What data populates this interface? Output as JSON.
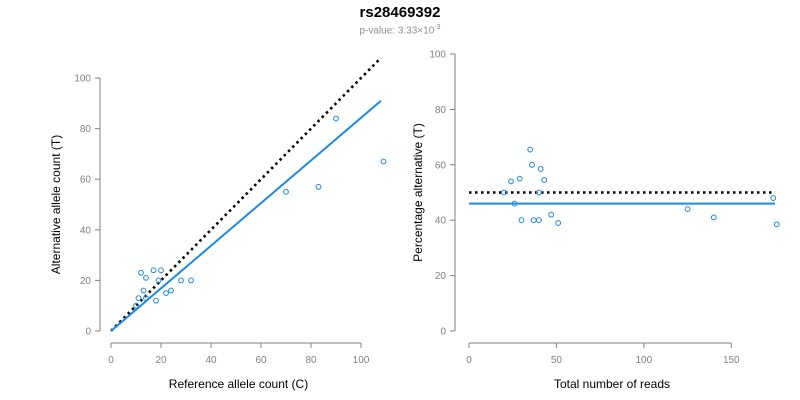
{
  "header": {
    "title": "rs28469392",
    "pvalue_prefix": "p-value: 3.33×10",
    "pvalue_exponent": "-3"
  },
  "colors": {
    "fit": "#1e88e5",
    "points": "#1e88e5",
    "reference": "#000000",
    "axis": "#808080"
  },
  "chart_data": [
    {
      "type": "scatter",
      "xlabel": "Reference allele count (C)",
      "ylabel": "Alternative allele count (T)",
      "xlim": [
        0,
        110
      ],
      "ylim": [
        0,
        100
      ],
      "xticks": [
        0,
        20,
        40,
        60,
        80,
        100
      ],
      "yticks": [
        0,
        20,
        40,
        60,
        80,
        100
      ],
      "points": [
        {
          "x": 10,
          "y": 10
        },
        {
          "x": 11,
          "y": 13
        },
        {
          "x": 12,
          "y": 23
        },
        {
          "x": 13,
          "y": 16
        },
        {
          "x": 14,
          "y": 21
        },
        {
          "x": 14,
          "y": 13
        },
        {
          "x": 17,
          "y": 24
        },
        {
          "x": 18,
          "y": 12
        },
        {
          "x": 19,
          "y": 20
        },
        {
          "x": 20,
          "y": 24
        },
        {
          "x": 22,
          "y": 15
        },
        {
          "x": 24,
          "y": 16
        },
        {
          "x": 28,
          "y": 20
        },
        {
          "x": 32,
          "y": 20
        },
        {
          "x": 70,
          "y": 55
        },
        {
          "x": 83,
          "y": 57
        },
        {
          "x": 90,
          "y": 84
        },
        {
          "x": 109,
          "y": 67
        }
      ],
      "lines": [
        {
          "style": "dotted",
          "color": "#000000",
          "x": [
            0,
            108
          ],
          "y": [
            0,
            108
          ]
        },
        {
          "style": "solid",
          "color": "#1e88e5",
          "x": [
            0,
            108
          ],
          "y": [
            0,
            91
          ]
        }
      ]
    },
    {
      "type": "scatter",
      "xlabel": "Total number of reads",
      "ylabel": "Percentage alternative (T)",
      "xlim": [
        0,
        175
      ],
      "ylim": [
        0,
        100
      ],
      "xticks": [
        0,
        50,
        100,
        150
      ],
      "yticks": [
        0,
        20,
        40,
        60,
        80,
        100
      ],
      "points": [
        {
          "x": 20,
          "y": 50
        },
        {
          "x": 24,
          "y": 54
        },
        {
          "x": 26,
          "y": 46
        },
        {
          "x": 29,
          "y": 55
        },
        {
          "x": 30,
          "y": 40
        },
        {
          "x": 35,
          "y": 65.5
        },
        {
          "x": 36,
          "y": 60
        },
        {
          "x": 37,
          "y": 40
        },
        {
          "x": 40,
          "y": 40
        },
        {
          "x": 40,
          "y": 50
        },
        {
          "x": 41,
          "y": 58.5
        },
        {
          "x": 43,
          "y": 54.5
        },
        {
          "x": 47,
          "y": 42
        },
        {
          "x": 51,
          "y": 39
        },
        {
          "x": 125,
          "y": 44
        },
        {
          "x": 140,
          "y": 41
        },
        {
          "x": 174,
          "y": 48
        },
        {
          "x": 176,
          "y": 38.5
        }
      ],
      "lines": [
        {
          "style": "dotted",
          "color": "#000000",
          "x": [
            0,
            175
          ],
          "y": [
            50,
            50
          ]
        },
        {
          "style": "solid",
          "color": "#1e88e5",
          "x": [
            0,
            175
          ],
          "y": [
            46,
            46
          ]
        }
      ]
    }
  ]
}
